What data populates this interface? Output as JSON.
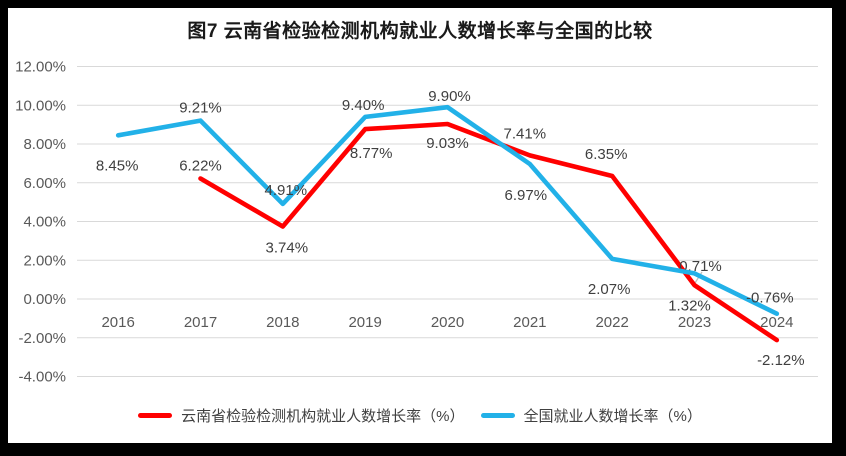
{
  "title": "图7  云南省检验检测机构就业人数增长率与全国的比较",
  "chart_data": {
    "type": "line",
    "categories": [
      "2016",
      "2017",
      "2018",
      "2019",
      "2020",
      "2021",
      "2022",
      "2023",
      "2024"
    ],
    "series": [
      {
        "name": "云南省检验检测机构就业人数增长率（%）",
        "color": "#FF0000",
        "values": [
          null,
          6.22,
          3.74,
          8.77,
          9.03,
          7.41,
          6.35,
          0.71,
          -2.12
        ]
      },
      {
        "name": "全国就业人数增长率（%）",
        "color": "#22B1E8",
        "values": [
          8.45,
          9.21,
          4.91,
          9.4,
          9.9,
          6.97,
          2.07,
          1.32,
          -0.76
        ]
      }
    ],
    "ylim": [
      -4,
      12
    ],
    "ytick_step": 2,
    "yticks": [
      {
        "v": 12,
        "label": "12.00%"
      },
      {
        "v": 10,
        "label": "10.00%"
      },
      {
        "v": 8,
        "label": "8.00%"
      },
      {
        "v": 6,
        "label": "6.00%"
      },
      {
        "v": 4,
        "label": "4.00%"
      },
      {
        "v": 2,
        "label": "2.00%"
      },
      {
        "v": 0,
        "label": "0.00%"
      },
      {
        "v": -2,
        "label": "-2.00%"
      },
      {
        "v": -4,
        "label": "-4.00%"
      }
    ],
    "grid": true,
    "data_labels": true,
    "label_format": "0.00%",
    "legend_position": "bottom",
    "colors": {
      "gridline": "#D9D9D9",
      "axis_text": "#595959",
      "data_label_text": "#3F3F3F",
      "leader_line": "#BFBFBF",
      "plot_background": "#FFFFFF",
      "frame": "#000000"
    }
  }
}
